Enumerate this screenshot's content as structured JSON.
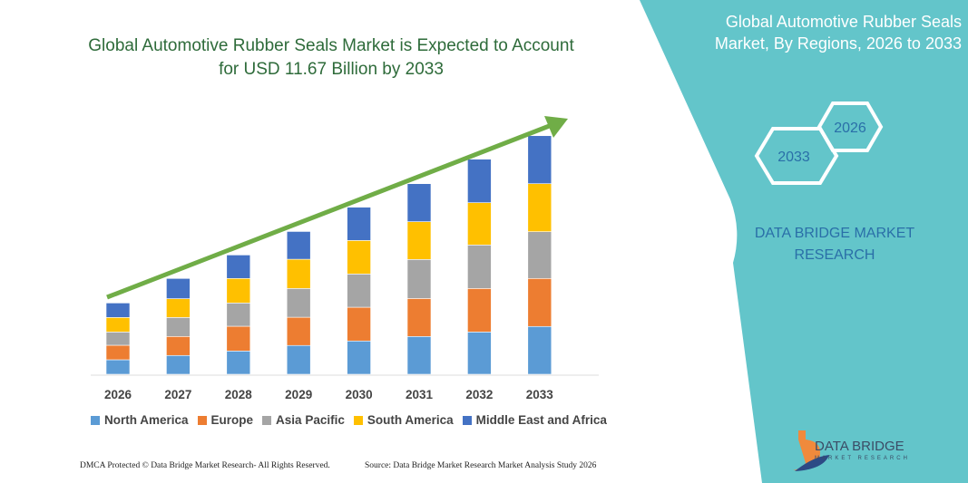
{
  "title": "Global Automotive Rubber Seals Market is Expected to Account for USD 11.67 Billion by 2033",
  "side_panel": {
    "title": "Global Automotive Rubber Seals Market, By Regions, 2026 to 2033",
    "hex_start": "2026",
    "hex_end": "2033",
    "brand": "DATA BRIDGE MARKET RESEARCH",
    "logo_text": "DATA BRIDGE",
    "logo_sub": "MARKET RESEARCH",
    "color": "#63c5ca"
  },
  "footer": {
    "left": "DMCA Protected © Data Bridge Market Research- All Rights Reserved.",
    "right": "Source: Data Bridge Market Research  Market Analysis Study 2026"
  },
  "chart_data": {
    "type": "bar",
    "stacked": true,
    "trend_arrow": true,
    "unit": "USD Billion",
    "categories": [
      "2026",
      "2027",
      "2028",
      "2029",
      "2030",
      "2031",
      "2032",
      "2033"
    ],
    "legend_position": "bottom",
    "grid": false,
    "series": [
      {
        "name": "North America",
        "color": "#5b9bd5",
        "values": [
          0.71,
          0.92,
          1.14,
          1.41,
          1.63,
          1.85,
          2.07,
          2.34
        ]
      },
      {
        "name": "Europe",
        "color": "#ed7d31",
        "values": [
          0.71,
          0.93,
          1.21,
          1.38,
          1.65,
          1.86,
          2.13,
          2.35
        ]
      },
      {
        "name": "Asia Pacific",
        "color": "#a5a5a5",
        "values": [
          0.65,
          0.93,
          1.14,
          1.41,
          1.63,
          1.91,
          2.13,
          2.29
        ]
      },
      {
        "name": "South America",
        "color": "#ffc000",
        "values": [
          0.71,
          0.92,
          1.2,
          1.43,
          1.64,
          1.85,
          2.07,
          2.35
        ]
      },
      {
        "name": "Middle East and Africa",
        "color": "#4472c4",
        "values": [
          0.71,
          0.99,
          1.15,
          1.36,
          1.63,
          1.86,
          2.13,
          2.35
        ]
      }
    ]
  }
}
